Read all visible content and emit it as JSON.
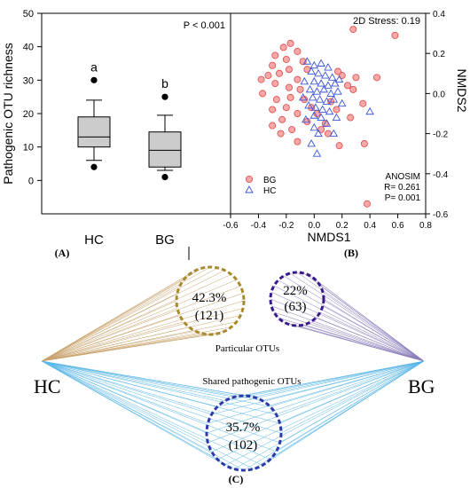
{
  "panels": {
    "a_label": "(A)",
    "b_label": "(B)",
    "c_label": "(C)"
  },
  "colors": {
    "bg_marker_fill": "#f7a8a8",
    "bg_marker_stroke": "#e04848",
    "hc_marker_stroke": "#3a55d8",
    "box_fill": "#cccccc",
    "hc_lines": "#c8a26a",
    "bg_lines": "#8a7ab8",
    "shared_lines": "#5ab6e6",
    "hc_circle": "#a88a2a",
    "bg_circle": "#3a1a8a",
    "shared_circle": "#2a3aa8"
  },
  "chart_data": [
    {
      "type": "box",
      "categories": [
        "HC",
        "BG"
      ],
      "ylabel": "Pathogenic OTU richness",
      "ylim": [
        -10,
        50
      ],
      "yticks": [
        "0",
        "10",
        "20",
        "30",
        "40",
        "50"
      ],
      "annotation": "P < 0.001",
      "boxes": [
        {
          "category": "HC",
          "min": 6,
          "q1": 10,
          "median": 13,
          "q3": 19,
          "max": 24,
          "outliers": [
            4,
            30
          ],
          "letter": "a"
        },
        {
          "category": "BG",
          "min": 3,
          "q1": 4,
          "median": 9,
          "q3": 14.5,
          "max": 19.5,
          "outliers": [
            1,
            25
          ],
          "letter": "b"
        }
      ]
    },
    {
      "type": "scatter",
      "xlabel": "NMDS1",
      "ylabel": "NMDS2",
      "xlim": [
        -0.6,
        0.8
      ],
      "ylim": [
        -0.6,
        0.4
      ],
      "xticks": [
        "-0.6",
        "-0.4",
        "-0.2",
        "0.0",
        "0.2",
        "0.4",
        "0.6",
        "0.8"
      ],
      "yticks": [
        "0.4",
        "0.2",
        "0.0",
        "-0.2",
        "-0.4",
        "-0.6"
      ],
      "stress": "2D Stress: 0.19",
      "anosim": [
        "ANOSIM",
        "R= 0.261",
        "P= 0.001"
      ],
      "series": [
        {
          "name": "BG",
          "marker": "circle",
          "points": [
            [
              0.28,
              0.32
            ],
            [
              0.58,
              0.29
            ],
            [
              -0.17,
              0.25
            ],
            [
              -0.22,
              0.23
            ],
            [
              -0.12,
              0.21
            ],
            [
              -0.28,
              0.19
            ],
            [
              -0.2,
              0.17
            ],
            [
              -0.08,
              0.16
            ],
            [
              -0.3,
              0.14
            ],
            [
              -0.18,
              0.12
            ],
            [
              -0.05,
              0.12
            ],
            [
              -0.25,
              0.1
            ],
            [
              -0.33,
              0.09
            ],
            [
              -0.12,
              0.07
            ],
            [
              0.2,
              0.09
            ],
            [
              0.3,
              0.08
            ],
            [
              0.45,
              0.08
            ],
            [
              0.17,
              0.11
            ],
            [
              0.24,
              0.04
            ],
            [
              -0.28,
              0.05
            ],
            [
              -0.38,
              0.07
            ],
            [
              -0.18,
              0.03
            ],
            [
              -0.1,
              0.02
            ],
            [
              0.28,
              0.02
            ],
            [
              -0.37,
              0.0
            ],
            [
              -0.27,
              -0.03
            ],
            [
              -0.17,
              -0.02
            ],
            [
              -0.07,
              -0.03
            ],
            [
              0.35,
              -0.05
            ],
            [
              -0.2,
              -0.07
            ],
            [
              -0.3,
              -0.08
            ],
            [
              0.02,
              -0.1
            ],
            [
              0.16,
              -0.08
            ],
            [
              -0.12,
              -0.1
            ],
            [
              0.26,
              -0.12
            ],
            [
              -0.23,
              -0.13
            ],
            [
              -0.05,
              -0.14
            ],
            [
              0.08,
              -0.15
            ],
            [
              -0.3,
              -0.16
            ],
            [
              -0.16,
              -0.18
            ],
            [
              0.05,
              -0.18
            ],
            [
              -0.24,
              -0.2
            ],
            [
              0.1,
              -0.2
            ],
            [
              -0.12,
              -0.24
            ],
            [
              0.36,
              -0.25
            ],
            [
              0.18,
              -0.26
            ],
            [
              0.38,
              -0.55
            ],
            [
              -0.02,
              -0.07
            ],
            [
              0.12,
              -0.04
            ]
          ]
        },
        {
          "name": "HC",
          "marker": "triangle",
          "points": [
            [
              -0.05,
              0.16
            ],
            [
              0.0,
              0.14
            ],
            [
              0.05,
              0.15
            ],
            [
              0.1,
              0.13
            ],
            [
              -0.02,
              0.11
            ],
            [
              0.03,
              0.1
            ],
            [
              0.08,
              0.09
            ],
            [
              0.13,
              0.08
            ],
            [
              0.18,
              0.07
            ],
            [
              -0.07,
              0.06
            ],
            [
              0.0,
              0.06
            ],
            [
              0.05,
              0.05
            ],
            [
              0.1,
              0.04
            ],
            [
              0.15,
              0.05
            ],
            [
              -0.03,
              0.02
            ],
            [
              0.02,
              0.01
            ],
            [
              0.07,
              0.02
            ],
            [
              0.12,
              0.0
            ],
            [
              0.17,
              0.01
            ],
            [
              -0.08,
              -0.02
            ],
            [
              -0.01,
              -0.02
            ],
            [
              0.04,
              -0.03
            ],
            [
              0.09,
              -0.04
            ],
            [
              0.14,
              -0.03
            ],
            [
              0.2,
              -0.05
            ],
            [
              -0.04,
              -0.06
            ],
            [
              0.01,
              -0.07
            ],
            [
              0.06,
              -0.08
            ],
            [
              0.11,
              -0.09
            ],
            [
              0.0,
              -0.11
            ],
            [
              0.05,
              -0.12
            ],
            [
              0.16,
              -0.12
            ],
            [
              -0.06,
              -0.13
            ],
            [
              0.09,
              -0.15
            ],
            [
              0.0,
              -0.17
            ],
            [
              0.03,
              -0.2
            ],
            [
              0.14,
              -0.2
            ],
            [
              -0.02,
              -0.25
            ],
            [
              0.02,
              -0.3
            ],
            [
              0.4,
              -0.09
            ]
          ]
        }
      ]
    }
  ],
  "venn": {
    "hc_label": "HC",
    "bg_label": "BG",
    "hc_pct": "42.3%",
    "hc_count": "(121)",
    "bg_pct": "22%",
    "bg_count": "(63)",
    "shared_pct": "35.7%",
    "shared_count": "(102)",
    "particular_label": "Particular OTUs",
    "shared_label": "Shared pathogenic OTUs"
  }
}
